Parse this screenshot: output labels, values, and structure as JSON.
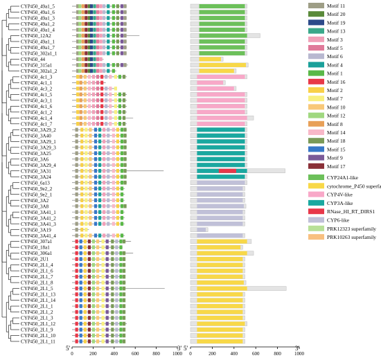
{
  "genes": [
    "CYP450_49a1_5",
    "CYP450_49a1_6",
    "CYP450_49a1_3",
    "CYP450_49a1_2",
    "CYP450_49a1_4",
    "CYP450_12A2",
    "CYP450_49a1_1",
    "CYP450_49a1_7",
    "CYP450_302a1_1",
    "CYP450_44",
    "CYP450_315a1",
    "CYP450_302a1_2",
    "CYP450_4c1_3",
    "CYP450_4c1_1",
    "CYP450_4c3_2",
    "CYP450_4c1_5",
    "CYP450_4c3_1",
    "CYP450_4c1_6",
    "CYP450_4c1_2",
    "CYP450_4c1_4",
    "CYP450_4c1_7",
    "CYP450_3A29_2",
    "CYP450_3A40",
    "CYP450_3A29_1",
    "CYP450_3A29_3",
    "CYP450_3A25",
    "CYP450_3A6",
    "CYP450_3A29_4",
    "CYP450_3A31",
    "CYP450_3A24",
    "CYP450_6a13",
    "CYP450_9e2_2",
    "CYP450_9e2_1",
    "CYP450_3A2",
    "CYP450_3A8",
    "CYP450_3A41_1",
    "CYP450_3A41_2",
    "CYP450_3A41_3",
    "CYP450_3A19",
    "CYP450_3A41_4",
    "CYP450_307a1",
    "CYP450_18a1",
    "CYP450_306a1",
    "CYP450_2U1",
    "CYP450_2L1_4",
    "CYP450_2L1_6",
    "CYP450_2L1_7",
    "CYP450_2L1_8",
    "CYP450_2L1_5",
    "CYP450_2L1_13",
    "CYP450_2L1_14",
    "CYP450_2L1_1",
    "CYP450_2L1_2",
    "CYP450_2L1_3",
    "CYP450_2L1_12",
    "CYP450_2L1_9",
    "CYP450_2L1_10",
    "CYP450_2L1_11"
  ],
  "motif_panel": {
    "end5": "5'",
    "end3": "3'",
    "ticks": [
      "0",
      "200",
      "400",
      "600",
      "800",
      "1000"
    ]
  },
  "domain_panel": {
    "end5": "5'",
    "end3": "3'",
    "ticks": [
      "0",
      "200",
      "400",
      "600",
      "800",
      "1000"
    ]
  },
  "motif_legend": [
    {
      "label": "Motif 11",
      "color": "#9e9e86"
    },
    {
      "label": "Motif 20",
      "color": "#5a8a3a"
    },
    {
      "label": "Motif 19",
      "color": "#2c4a8a"
    },
    {
      "label": "Motif 13",
      "color": "#3aa88a"
    },
    {
      "label": "Motif 3",
      "color": "#f0a0b8"
    },
    {
      "label": "Motif 5",
      "color": "#e07a9a"
    },
    {
      "label": "Motif 6",
      "color": "#b8b8d0"
    },
    {
      "label": "Motif 4",
      "color": "#1aa09a"
    },
    {
      "label": "Motif 1",
      "color": "#5ab848"
    },
    {
      "label": "Motif 16",
      "color": "#e83848"
    },
    {
      "label": "Motif 2",
      "color": "#f8d048"
    },
    {
      "label": "Motif 7",
      "color": "#f8f080"
    },
    {
      "label": "Motif 10",
      "color": "#f8c878"
    },
    {
      "label": "Motif 12",
      "color": "#a0d880"
    },
    {
      "label": "Motif 8",
      "color": "#e8a058"
    },
    {
      "label": "Motif 14",
      "color": "#f8b8c8"
    },
    {
      "label": "Motif 18",
      "color": "#7a9a58"
    },
    {
      "label": "Motif 15",
      "color": "#3878c8"
    },
    {
      "label": "Motif 9",
      "color": "#7a5a98"
    },
    {
      "label": "Motif 17",
      "color": "#8a3038"
    }
  ],
  "domain_legend": [
    {
      "label": "CYP24A1-like",
      "color": "#6cc05a"
    },
    {
      "label": "cytochrome_P450 superfamily",
      "color": "#f8d848"
    },
    {
      "label": "CYP4V-like",
      "color": "#f8a8c8"
    },
    {
      "label": "CYP3A-like",
      "color": "#1aa8a0"
    },
    {
      "label": "RNase_HI_RT_DIRS1",
      "color": "#e8384a"
    },
    {
      "label": "CYP6-like",
      "color": "#c0c0d8"
    },
    {
      "label": "PRK12323 superfamily",
      "color": "#b8e098"
    },
    {
      "label": "PRK10263 superfamily",
      "color": "#f8c080"
    }
  ]
}
